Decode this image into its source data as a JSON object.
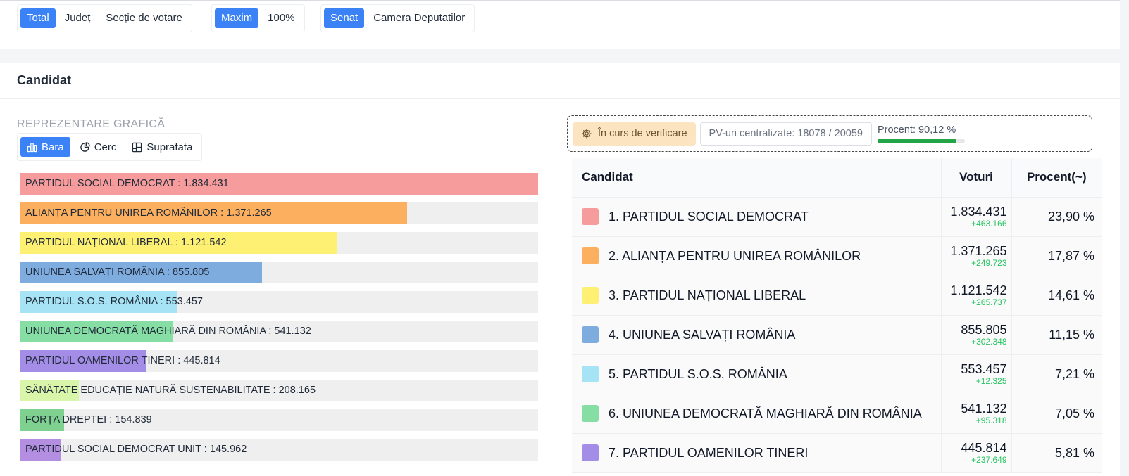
{
  "filters": {
    "scope": {
      "options": [
        "Total",
        "Județ",
        "Secție de votare"
      ],
      "active": 0
    },
    "mode": {
      "options": [
        "Maxim",
        "100%"
      ],
      "active": 0
    },
    "chamber": {
      "options": [
        "Senat",
        "Camera Deputatilor"
      ],
      "active": 0
    }
  },
  "card": {
    "title": "Candidat"
  },
  "viz": {
    "section_label": "REPREZENTARE GRAFICĂ",
    "tabs": [
      {
        "label": "Bara",
        "icon": "bar-chart-icon",
        "active": true
      },
      {
        "label": "Cerc",
        "icon": "pie-chart-icon",
        "active": false
      },
      {
        "label": "Suprafata",
        "icon": "treemap-icon",
        "active": false
      }
    ]
  },
  "status": {
    "verification": "În curs de verificare",
    "pv": "PV-uri centralizate: 18078 / 20059",
    "percent_text": "Procent: 90,12 %",
    "percent_value": 90.12
  },
  "table": {
    "headers": {
      "candidate": "Candidat",
      "votes": "Voturi",
      "percent": "Procent(~)"
    },
    "rows": [
      {
        "name": "1. PARTIDUL SOCIAL DEMOCRAT",
        "votes": "1.834.431",
        "diff": "+463.166",
        "percent": "23,90 %",
        "color": "#f69c9c"
      },
      {
        "name": "2. ALIANȚA PENTRU UNIREA ROMÂNILOR",
        "votes": "1.371.265",
        "diff": "+249.723",
        "percent": "17,87 %",
        "color": "#fcb05f"
      },
      {
        "name": "3. PARTIDUL NAȚIONAL LIBERAL",
        "votes": "1.121.542",
        "diff": "+265.737",
        "percent": "14,61 %",
        "color": "#fdf073"
      },
      {
        "name": "4. UNIUNEA SALVAȚI ROMÂNIA",
        "votes": "855.805",
        "diff": "+302.348",
        "percent": "11,15 %",
        "color": "#7facdf"
      },
      {
        "name": "5. PARTIDUL S.O.S. ROMÂNIA",
        "votes": "553.457",
        "diff": "+12.325",
        "percent": "7,21 %",
        "color": "#a6e3f5"
      },
      {
        "name": "6. UNIUNEA DEMOCRATĂ MAGHIARĂ DIN ROMÂNIA",
        "votes": "541.132",
        "diff": "+95.318",
        "percent": "7,05 %",
        "color": "#86dea5"
      },
      {
        "name": "7. PARTIDUL OAMENILOR TINERI",
        "votes": "445.814",
        "diff": "+237.649",
        "percent": "5,81 %",
        "color": "#a48de6"
      }
    ]
  },
  "bars": [
    {
      "label": "PARTIDUL SOCIAL DEMOCRAT : 1.834.431",
      "value": 1834431,
      "color": "#f69c9c"
    },
    {
      "label": "ALIANȚA PENTRU UNIREA ROMÂNILOR : 1.371.265",
      "value": 1371265,
      "color": "#fcb05f"
    },
    {
      "label": "PARTIDUL NAȚIONAL LIBERAL : 1.121.542",
      "value": 1121542,
      "color": "#fdf073"
    },
    {
      "label": "UNIUNEA SALVAȚI ROMÂNIA : 855.805",
      "value": 855805,
      "color": "#7facdf"
    },
    {
      "label": "PARTIDUL S.O.S. ROMÂNIA : 553.457",
      "value": 553457,
      "color": "#a6e3f5"
    },
    {
      "label": "UNIUNEA DEMOCRATĂ MAGHIARĂ DIN ROMÂNIA : 541.132",
      "value": 541132,
      "color": "#86dea5"
    },
    {
      "label": "PARTIDUL OAMENILOR TINERI : 445.814",
      "value": 445814,
      "color": "#a48de6"
    },
    {
      "label": "SĂNĂTATE EDUCAȚIE NATURĂ SUSTENABILITATE : 208.165",
      "value": 208165,
      "color": "#d9f5a9"
    },
    {
      "label": "FORȚA DREPTEI : 154.839",
      "value": 154839,
      "color": "#7fd18f"
    },
    {
      "label": "PARTIDUL SOCIAL DEMOCRAT UNIT : 145.962",
      "value": 145962,
      "color": "#b48ee0"
    }
  ]
}
